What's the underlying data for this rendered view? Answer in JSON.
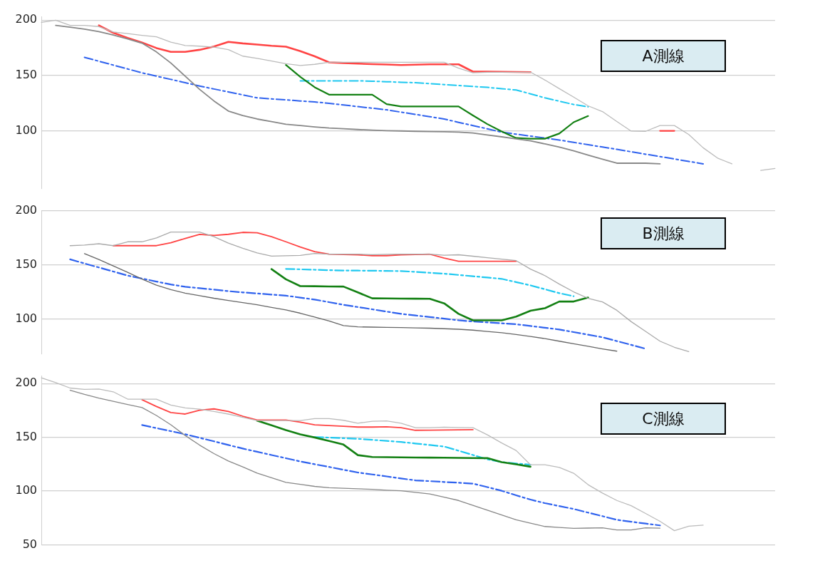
{
  "chart_data": [
    {
      "type": "line",
      "categories": [
        null,
        null,
        null,
        null,
        null,
        null,
        null,
        null,
        null,
        null,
        null,
        null,
        null,
        null,
        null,
        null,
        null,
        null,
        null,
        null,
        null,
        null,
        null,
        null,
        null,
        null,
        null,
        null,
        null,
        null,
        null,
        null,
        null,
        null,
        null,
        null,
        null,
        null,
        null,
        null,
        null,
        null,
        null,
        null,
        null,
        null,
        null,
        null,
        null,
        null,
        null,
        null
      ],
      "ylim": [
        48,
        203
      ],
      "yticks": [
        200,
        150,
        100
      ],
      "grid": "y",
      "tick_labels": "y",
      "marker": "none",
      "annotations": [
        "A測線"
      ],
      "series": [
        {
          "color": "#bbbbbb",
          "line_style": "solid",
          "values": [
            198,
            199.9,
            195.2,
            195.2,
            194.2,
            189.3,
            187.8,
            186.3,
            184.9,
            180.2,
            177.1,
            176.5,
            175.6,
            173.4,
            167.5,
            165.5,
            163.1,
            160.7,
            159.1,
            160.1,
            161.9,
            161.9,
            161.9,
            161.9,
            161.9,
            161.9,
            161.9,
            161.9,
            161.9,
            156.6,
            152.4,
            153,
            153,
            153,
            153,
            145.9,
            138.1,
            130.5,
            122.6,
            117.4,
            108.4,
            99.8,
            99.6,
            104.8,
            104.8,
            96.7,
            84.7,
            75.4,
            70.2,
            null,
            null,
            null
          ]
        },
        {
          "color": "#bbbbbb",
          "line_style": "solid",
          "values": [
            null,
            null,
            null,
            null,
            null,
            null,
            null,
            null,
            null,
            null,
            null,
            null,
            null,
            null,
            null,
            null,
            null,
            null,
            null,
            null,
            null,
            null,
            null,
            null,
            null,
            null,
            null,
            null,
            null,
            null,
            null,
            null,
            null,
            null,
            null,
            null,
            null,
            null,
            null,
            null,
            null,
            null,
            null,
            null,
            null,
            null,
            null,
            null,
            null,
            null,
            64.3,
            66.1
          ]
        },
        {
          "color": "#888888",
          "line_style": "solid",
          "values": [
            null,
            195.2,
            193.6,
            191.9,
            189.6,
            186.6,
            183.1,
            179.2,
            171.3,
            161.3,
            149.4,
            137.5,
            127,
            117.9,
            113.9,
            110.7,
            108.4,
            106,
            104.8,
            103.6,
            102.6,
            101.9,
            101.2,
            100.7,
            100.2,
            99.9,
            99.6,
            99.4,
            99.2,
            98.9,
            98,
            96.3,
            94.6,
            92.8,
            91,
            88.2,
            85.3,
            82,
            78.1,
            74.4,
            70.8,
            70.8,
            70.8,
            70.2,
            null,
            null,
            null,
            null,
            null,
            null,
            null,
            null
          ]
        },
        {
          "color": "#ff4444",
          "line_style": "solid",
          "values": [
            null,
            null,
            null,
            null,
            195.2,
            188.6,
            184,
            179.8,
            174.8,
            171.4,
            171.4,
            173.2,
            176.2,
            180.4,
            179,
            178,
            176.8,
            176,
            172,
            167.3,
            161.9,
            161.3,
            160.7,
            160.3,
            159.9,
            159.5,
            159.8,
            160.1,
            160.1,
            160.1,
            153.5,
            153.4,
            153.3,
            153.2,
            153,
            null,
            null,
            null,
            null,
            null,
            null,
            null,
            null,
            null,
            null,
            null,
            null,
            null,
            null,
            null,
            null,
            null
          ]
        },
        {
          "color": "#ff4444",
          "line_style": "solid",
          "values": [
            null,
            null,
            null,
            null,
            null,
            null,
            null,
            null,
            null,
            null,
            null,
            null,
            null,
            null,
            null,
            null,
            null,
            null,
            null,
            null,
            null,
            null,
            null,
            null,
            null,
            null,
            null,
            null,
            null,
            null,
            null,
            null,
            null,
            null,
            null,
            null,
            null,
            null,
            null,
            null,
            null,
            null,
            null,
            100,
            100,
            null,
            null,
            null,
            null,
            null,
            null,
            null
          ]
        },
        {
          "color": "#138013",
          "line_style": "solid",
          "values": [
            null,
            null,
            null,
            null,
            null,
            null,
            null,
            null,
            null,
            null,
            null,
            null,
            null,
            null,
            null,
            null,
            null,
            159.5,
            148.7,
            139.4,
            132.7,
            132.7,
            132.7,
            132.7,
            124.1,
            122,
            122,
            122,
            122,
            122,
            113.9,
            106.1,
            99.4,
            93.5,
            92.9,
            92.9,
            97.6,
            107.8,
            113.4,
            null,
            null,
            null,
            null,
            null,
            null,
            null,
            null,
            null,
            null,
            null,
            null,
            null
          ]
        },
        {
          "color": "#1ec8f0",
          "line_style": "dashed",
          "values": [
            null,
            null,
            null,
            null,
            null,
            null,
            null,
            null,
            null,
            null,
            null,
            null,
            null,
            null,
            null,
            null,
            null,
            null,
            145.2,
            145.2,
            145.2,
            145.2,
            145.2,
            144.8,
            144.4,
            143.9,
            143.5,
            142.7,
            141.8,
            141,
            140.1,
            139.3,
            138.1,
            136.9,
            133.4,
            129.8,
            126.8,
            123.8,
            121.7,
            null,
            null,
            null,
            null,
            null,
            null,
            null,
            null,
            null,
            null,
            null,
            null,
            null
          ]
        },
        {
          "color": "#2f62ee",
          "line_style": "dashed",
          "values": [
            null,
            null,
            null,
            166.4,
            162.9,
            159.4,
            155.9,
            152.4,
            149.4,
            146.5,
            143.5,
            140.5,
            137.8,
            135.2,
            132.5,
            129.8,
            128.9,
            128,
            127,
            126.1,
            124.9,
            123.4,
            121.9,
            120.5,
            119,
            116.9,
            114.9,
            112.8,
            110.7,
            107.7,
            104.8,
            101.8,
            98.8,
            97,
            95.3,
            93.5,
            91.7,
            89.6,
            87.5,
            85.4,
            83.3,
            81.1,
            78.9,
            76.8,
            74.6,
            72.4,
            70.2,
            null,
            null,
            null,
            null,
            null
          ]
        }
      ]
    },
    {
      "type": "line",
      "categories": [
        null,
        null,
        null,
        null,
        null,
        null,
        null,
        null,
        null,
        null,
        null,
        null,
        null,
        null,
        null,
        null,
        null,
        null,
        null,
        null,
        null,
        null,
        null,
        null,
        null,
        null,
        null,
        null,
        null,
        null,
        null,
        null,
        null,
        null,
        null,
        null,
        null,
        null,
        null,
        null,
        null,
        null,
        null,
        null,
        null,
        null,
        null,
        null,
        null,
        null,
        null,
        null
      ],
      "ylim": [
        68,
        200
      ],
      "yticks": [
        200,
        150,
        100
      ],
      "grid": "y",
      "tick_labels": "y",
      "marker": "none",
      "annotations": [
        "B測線"
      ],
      "series": [
        {
          "color": "#aaaaaa",
          "line_style": "solid",
          "values": [
            null,
            null,
            167.7,
            168.3,
            169.5,
            167.7,
            171.3,
            171.3,
            174.9,
            180.2,
            180.2,
            180.2,
            176,
            170.1,
            165.3,
            161.1,
            158.1,
            158.4,
            158.7,
            160.5,
            159.9,
            159.9,
            159.9,
            159.4,
            159.7,
            159.9,
            159.9,
            159.9,
            158.9,
            159.3,
            158,
            156.6,
            155.3,
            153.9,
            146.1,
            140.1,
            132.3,
            125.1,
            119.2,
            115.8,
            108.1,
            97.6,
            88.6,
            79.6,
            74,
            70,
            null,
            null,
            null,
            null,
            null,
            null
          ]
        },
        {
          "color": "#666666",
          "line_style": "solid",
          "values": [
            null,
            null,
            null,
            160.4,
            154.9,
            149.1,
            143.1,
            136.9,
            131.3,
            127.2,
            123.9,
            121.6,
            119.2,
            117.2,
            115.2,
            113.2,
            110.8,
            108.4,
            105.4,
            101.8,
            98.2,
            94,
            92.8,
            92.6,
            92.4,
            92.2,
            91.9,
            91.6,
            91.1,
            90.6,
            89.8,
            88.6,
            87.4,
            85.7,
            84,
            82,
            79.6,
            77.2,
            74.9,
            72.5,
            70.4,
            null,
            null,
            null,
            null,
            null,
            null,
            null,
            null,
            null,
            null,
            null
          ]
        },
        {
          "color": "#ff4444",
          "line_style": "solid",
          "values": [
            null,
            null,
            null,
            null,
            null,
            167.7,
            167.7,
            167.7,
            167.7,
            170.4,
            174.4,
            178.1,
            177.2,
            178.2,
            180,
            179.6,
            176,
            171.3,
            166.5,
            162.2,
            159.9,
            159.6,
            159.3,
            158.5,
            158.5,
            159.3,
            159.6,
            159.8,
            156.2,
            153.3,
            153.3,
            153.3,
            153.3,
            153.3,
            null,
            null,
            null,
            null,
            null,
            null,
            null,
            null,
            null,
            null,
            null,
            null,
            null,
            null,
            null,
            null,
            null,
            null
          ]
        },
        {
          "color": "#138013",
          "line_style": "solid",
          "values": [
            null,
            null,
            null,
            null,
            null,
            null,
            null,
            null,
            null,
            null,
            null,
            null,
            null,
            null,
            null,
            null,
            146.1,
            136.7,
            130.4,
            130.3,
            130.1,
            130,
            124.6,
            119.1,
            119,
            118.9,
            118.8,
            118.7,
            114.5,
            104.8,
            98.8,
            98.8,
            98.8,
            102.3,
            107.7,
            110,
            116.2,
            116.2,
            119.8,
            null,
            null,
            null,
            null,
            null,
            null,
            null,
            null,
            null,
            null,
            null,
            null,
            null
          ]
        },
        {
          "color": "#1ec8f0",
          "line_style": "dashed",
          "values": [
            null,
            null,
            null,
            null,
            null,
            null,
            null,
            null,
            null,
            null,
            null,
            null,
            null,
            null,
            null,
            null,
            null,
            146.3,
            145.9,
            145.5,
            145.1,
            144.8,
            144.7,
            144.6,
            144.4,
            144.3,
            143.5,
            142.7,
            141.9,
            140.7,
            139.5,
            138.3,
            137.1,
            134.1,
            131.1,
            127.5,
            123.9,
            121.1,
            null,
            null,
            null,
            null,
            null,
            null,
            null,
            null,
            null,
            null,
            null,
            null,
            null,
            null
          ]
        },
        {
          "color": "#2f62ee",
          "line_style": "dashed",
          "values": [
            null,
            null,
            155.1,
            151.3,
            147.6,
            143.9,
            140.1,
            137.4,
            134.6,
            131.9,
            129.8,
            128.5,
            127.2,
            125.8,
            124.6,
            123.6,
            122.6,
            121.6,
            119.8,
            118,
            115.6,
            113.2,
            111.1,
            109,
            106.9,
            104.8,
            103.3,
            101.9,
            100.4,
            98.9,
            97.8,
            96.9,
            96.1,
            95.2,
            93.6,
            92,
            90.4,
            88,
            85.6,
            83.2,
            79.7,
            76.2,
            72.6,
            null,
            null,
            null,
            null,
            null,
            null,
            null,
            null,
            null
          ]
        }
      ]
    },
    {
      "type": "line",
      "categories": [
        null,
        null,
        null,
        null,
        null,
        null,
        null,
        null,
        null,
        null,
        null,
        null,
        null,
        null,
        null,
        null,
        null,
        null,
        null,
        null,
        null,
        null,
        null,
        null,
        null,
        null,
        null,
        null,
        null,
        null,
        null,
        null,
        null,
        null,
        null,
        null,
        null,
        null,
        null,
        null,
        null,
        null,
        null,
        null,
        null,
        null,
        null,
        null,
        null,
        null,
        null,
        null
      ],
      "ylim": [
        50,
        207
      ],
      "yticks": [
        200,
        150,
        100,
        50
      ],
      "grid": "y",
      "tick_labels": "y",
      "marker": "none",
      "annotations": [
        "C測線"
      ],
      "series": [
        {
          "color": "#bbbbbb",
          "line_style": "solid",
          "values": [
            205.3,
            200.8,
            195.8,
            194.6,
            194.9,
            192.3,
            185.5,
            185.5,
            185.5,
            180,
            177.3,
            176.1,
            174,
            171.6,
            168.5,
            165.5,
            165.5,
            165.5,
            165.5,
            167.4,
            167.4,
            165.8,
            163.1,
            164.9,
            165.2,
            163.1,
            158.9,
            158.9,
            159.4,
            159.1,
            158.9,
            152.3,
            144.7,
            137.7,
            124.4,
            124.4,
            122,
            116.5,
            105.9,
            98.1,
            91.2,
            86.3,
            79.1,
            71.8,
            63.1,
            67.3,
            68.2,
            null,
            null,
            null,
            null,
            null
          ]
        },
        {
          "color": "#888888",
          "line_style": "solid",
          "values": [
            null,
            null,
            193.8,
            189.9,
            186.4,
            183.4,
            180.5,
            177.6,
            170.3,
            161.7,
            151.6,
            142.7,
            134.8,
            127.9,
            122.4,
            116.6,
            112.4,
            108.1,
            106.2,
            104.3,
            103.1,
            102.6,
            102.1,
            101.5,
            100.8,
            100.2,
            98.7,
            97.2,
            94.2,
            91.2,
            86.7,
            82.1,
            77.7,
            73.2,
            70.1,
            67,
            66.1,
            65.2,
            65.5,
            65.8,
            63.8,
            63.8,
            65.8,
            65.4,
            null,
            null,
            null,
            null,
            null,
            null,
            null,
            null
          ]
        },
        {
          "color": "#ff4444",
          "line_style": "solid",
          "values": [
            null,
            null,
            null,
            null,
            null,
            null,
            null,
            184.9,
            178.6,
            173,
            171.6,
            175.2,
            176.4,
            174,
            169.6,
            166.1,
            166.1,
            166.1,
            164,
            161.6,
            160.9,
            160.2,
            159.5,
            159.5,
            159.8,
            158.9,
            156.5,
            156.6,
            156.7,
            156.9,
            157.1,
            null,
            null,
            null,
            null,
            null,
            null,
            null,
            null,
            null,
            null,
            null,
            null,
            null,
            null,
            null,
            null,
            null,
            null,
            null,
            null,
            null
          ]
        },
        {
          "color": "#138013",
          "line_style": "solid",
          "values": [
            null,
            null,
            null,
            null,
            null,
            null,
            null,
            null,
            null,
            null,
            null,
            null,
            null,
            null,
            null,
            165.4,
            161.1,
            156.7,
            152.7,
            149.8,
            146.5,
            143.2,
            133.4,
            131.6,
            131.5,
            131.3,
            131.2,
            131.1,
            131,
            130.8,
            130.7,
            130.6,
            126.8,
            124.9,
            122.6,
            null,
            null,
            null,
            null,
            null,
            null,
            null,
            null,
            null,
            null,
            null,
            null,
            null,
            null,
            null,
            null,
            null
          ]
        },
        {
          "color": "#1ec8f0",
          "line_style": "dashed",
          "values": [
            null,
            null,
            null,
            null,
            null,
            null,
            null,
            null,
            null,
            null,
            null,
            null,
            null,
            null,
            null,
            null,
            null,
            null,
            null,
            150.2,
            149.7,
            149.1,
            148.6,
            147.6,
            146.6,
            145.6,
            144.2,
            142.8,
            141.4,
            137.5,
            133.5,
            129.5,
            126.9,
            125.6,
            124.5,
            null,
            null,
            null,
            null,
            null,
            null,
            null,
            null,
            null,
            null,
            null,
            null,
            null,
            null,
            null,
            null,
            null
          ]
        },
        {
          "color": "#2f62ee",
          "line_style": "dashed",
          "values": [
            null,
            null,
            null,
            null,
            null,
            null,
            null,
            161.4,
            158.5,
            155.7,
            152.8,
            149.5,
            146.2,
            142.8,
            139.5,
            136.5,
            133.5,
            130.5,
            127.5,
            124.9,
            122.4,
            119.8,
            117.2,
            115.4,
            113.6,
            111.7,
            109.9,
            109.2,
            108.4,
            107.7,
            106.9,
            103.6,
            100.2,
            96,
            92,
            88.7,
            86,
            83.3,
            79.9,
            76.6,
            73.2,
            71.4,
            69.7,
            68,
            null,
            null,
            null,
            null,
            null,
            null,
            null,
            null
          ]
        }
      ]
    }
  ]
}
